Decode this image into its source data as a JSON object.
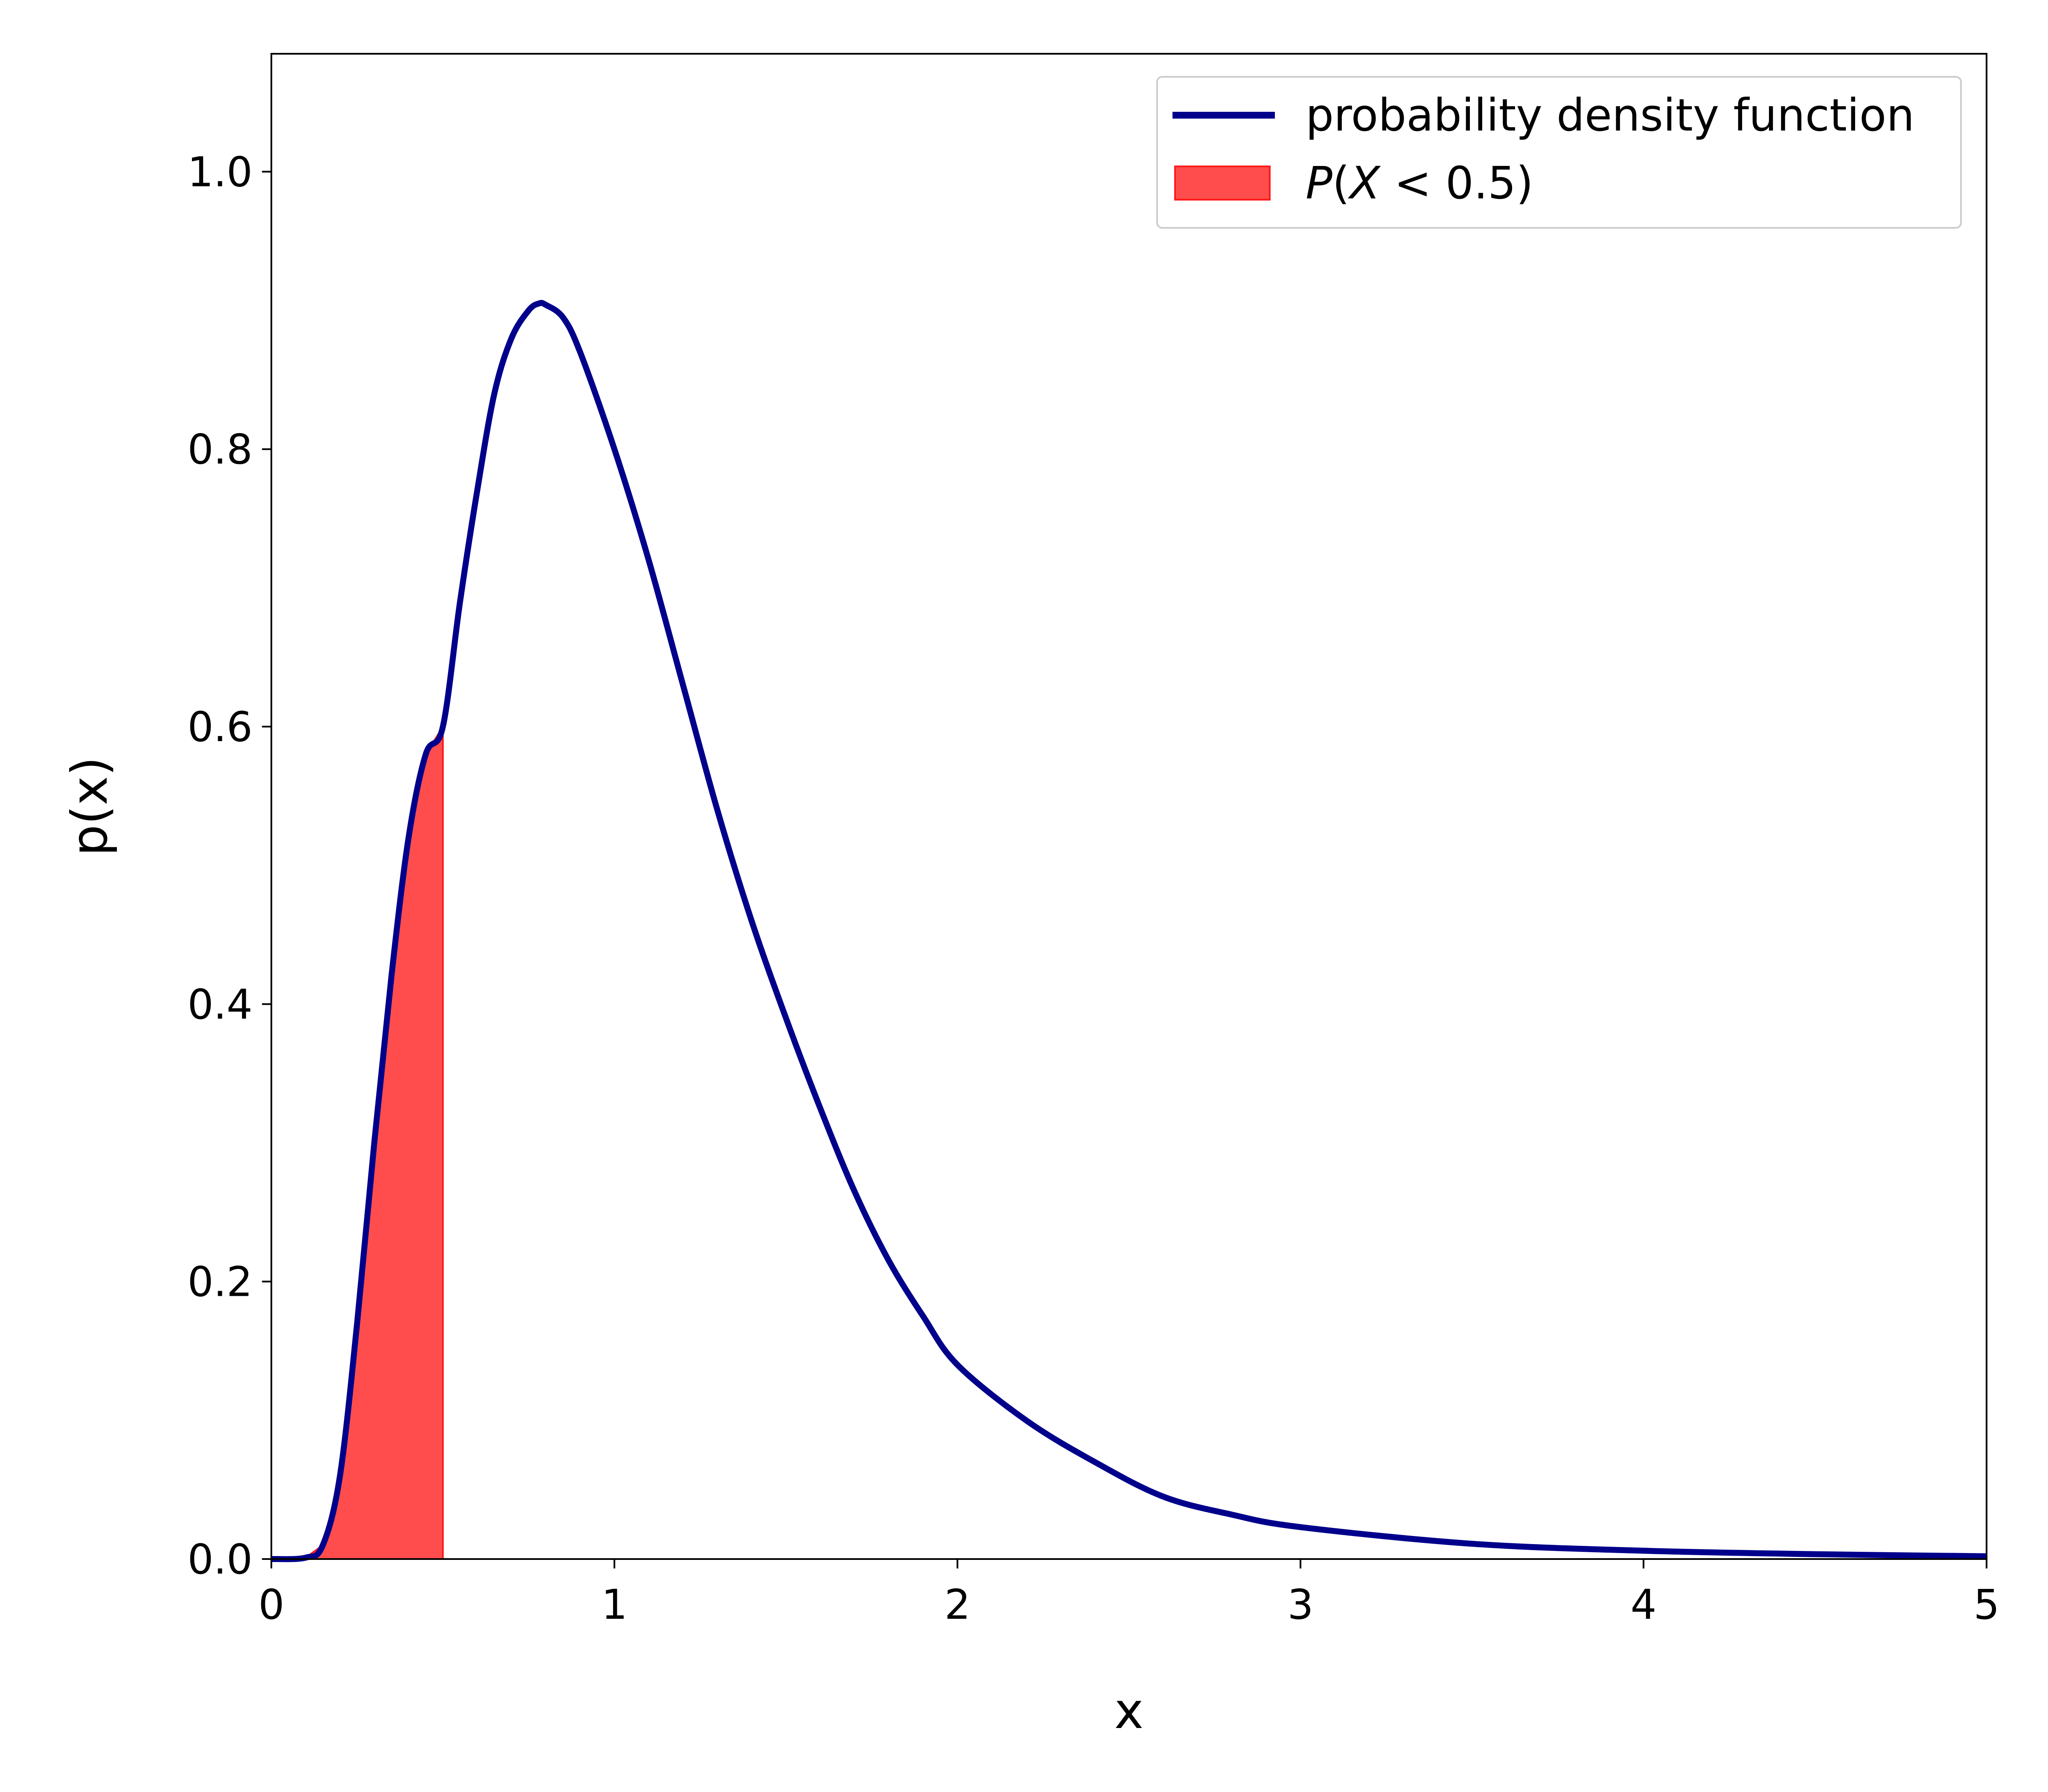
{
  "chart_data": {
    "type": "line",
    "title": "",
    "xlabel": "x",
    "ylabel": "p(x)",
    "xlim": [
      0,
      5
    ],
    "ylim": [
      0,
      1.085
    ],
    "grid": false,
    "legend_position": "top-right",
    "xticks": [
      "0",
      "1",
      "2",
      "3",
      "4",
      "5"
    ],
    "yticks": [
      "0.0",
      "0.2",
      "0.4",
      "0.6",
      "0.8",
      "1.0"
    ],
    "series": [
      {
        "name": "probability density function",
        "color": "#00008b",
        "points": [
          [
            0.0,
            0.0
          ],
          [
            0.1,
            0.001
          ],
          [
            0.15,
            0.01
          ],
          [
            0.2,
            0.06
          ],
          [
            0.25,
            0.17
          ],
          [
            0.3,
            0.3
          ],
          [
            0.35,
            0.42
          ],
          [
            0.4,
            0.52
          ],
          [
            0.45,
            0.58
          ],
          [
            0.5,
            0.6
          ],
          [
            0.55,
            0.69
          ],
          [
            0.6,
            0.77
          ],
          [
            0.65,
            0.84
          ],
          [
            0.7,
            0.88
          ],
          [
            0.75,
            0.9
          ],
          [
            0.78,
            0.905
          ],
          [
            0.8,
            0.904
          ],
          [
            0.85,
            0.895
          ],
          [
            0.9,
            0.87
          ],
          [
            1.0,
            0.8
          ],
          [
            1.1,
            0.72
          ],
          [
            1.2,
            0.63
          ],
          [
            1.3,
            0.54
          ],
          [
            1.4,
            0.46
          ],
          [
            1.5,
            0.39
          ],
          [
            1.6,
            0.325
          ],
          [
            1.7,
            0.265
          ],
          [
            1.8,
            0.215
          ],
          [
            1.9,
            0.175
          ],
          [
            2.0,
            0.14
          ],
          [
            2.2,
            0.1
          ],
          [
            2.4,
            0.07
          ],
          [
            2.6,
            0.045
          ],
          [
            2.8,
            0.032
          ],
          [
            3.0,
            0.023
          ],
          [
            3.5,
            0.011
          ],
          [
            4.0,
            0.006
          ],
          [
            4.5,
            0.0035
          ],
          [
            5.0,
            0.002
          ]
        ]
      }
    ],
    "shaded_area": {
      "label": "P(X < 0.5)",
      "label_parts": {
        "p": "P",
        "open": "(",
        "var": "X",
        "rest": " < 0.5)"
      },
      "x_from": 0,
      "x_to": 0.5,
      "fill_color": "#ff4d4d",
      "edge_color": "#ff1a1a"
    }
  }
}
